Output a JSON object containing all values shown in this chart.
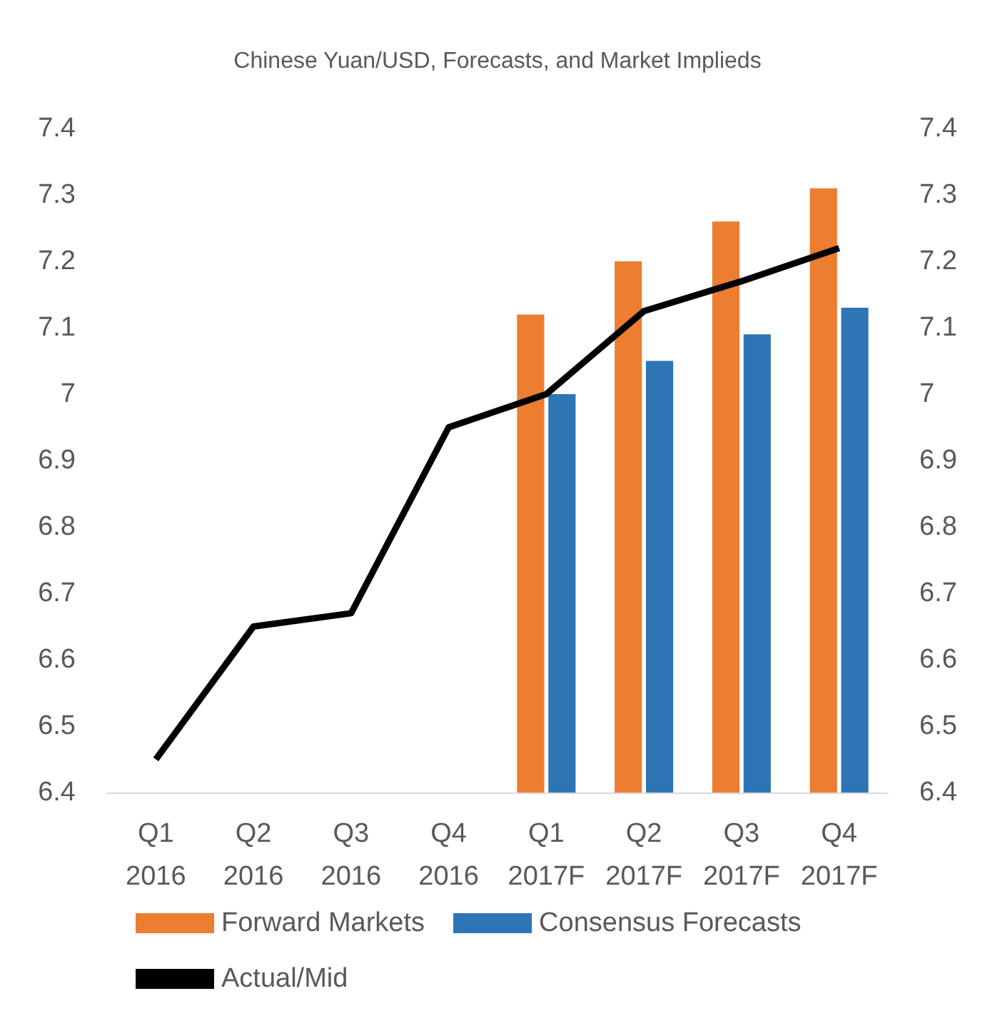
{
  "chart_data": {
    "type": "bar",
    "title": "Chinese Yuan/USD, Forecasts, and Market Implieds",
    "categories": [
      "Q1\n2016",
      "Q2\n2016",
      "Q3\n2016",
      "Q4\n2016",
      "Q1\n2017F",
      "Q2\n2017F",
      "Q3\n2017F",
      "Q4\n2017F"
    ],
    "series": [
      {
        "name": "Forward Markets",
        "color": "#ed7d31",
        "values": [
          6.4,
          6.4,
          6.4,
          6.4,
          7.12,
          7.2,
          7.26,
          7.31
        ]
      },
      {
        "name": "Consensus Forecasts",
        "color": "#2e75b6",
        "values": [
          6.4,
          6.4,
          6.4,
          6.4,
          7.0,
          7.05,
          7.09,
          7.13
        ]
      },
      {
        "name": "Actual/Mid",
        "type": "line",
        "color": "#000000",
        "marker": "none",
        "values": [
          6.45,
          6.65,
          6.67,
          6.95,
          7.0,
          7.125,
          7.17,
          7.22
        ]
      }
    ],
    "ylim": [
      6.4,
      7.4
    ],
    "yticks": [
      6.4,
      6.5,
      6.6,
      6.7,
      6.8,
      6.9,
      7,
      7.1,
      7.2,
      7.3,
      7.4
    ],
    "y2lim": [
      6.4,
      7.4
    ],
    "y2ticks": [
      6.4,
      6.5,
      6.6,
      6.7,
      6.8,
      6.9,
      7,
      7.1,
      7.2,
      7.3,
      7.4
    ],
    "grid": false,
    "legend": "bottom"
  }
}
